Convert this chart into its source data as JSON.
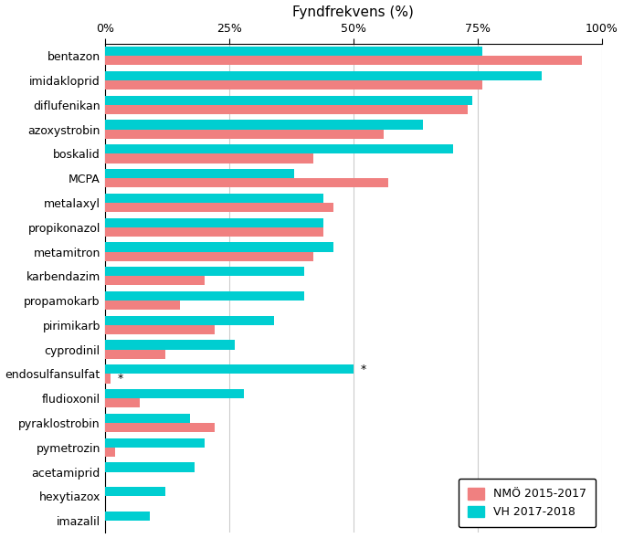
{
  "title": "Fyndfrekvens (%)",
  "categories": [
    "bentazon",
    "imidakloprid",
    "diflufenikan",
    "azoxystrobin",
    "boskalid",
    "MCPA",
    "metalaxyl",
    "propikonazol",
    "metamitron",
    "karbendazim",
    "propamokarb",
    "pirimikarb",
    "cyprodinil",
    "endosulfansulfat",
    "fludioxonil",
    "pyraklostrobin",
    "pymetrozin",
    "acetamiprid",
    "hexytiazox",
    "imazalil"
  ],
  "nmo_values": [
    96,
    76,
    73,
    56,
    42,
    57,
    46,
    44,
    42,
    20,
    15,
    22,
    12,
    1,
    7,
    22,
    2,
    0,
    0,
    0
  ],
  "vh_values": [
    76,
    88,
    74,
    64,
    70,
    38,
    44,
    44,
    46,
    40,
    40,
    34,
    26,
    50,
    28,
    17,
    20,
    18,
    12,
    9
  ],
  "nmo_color": "#F08080",
  "vh_color": "#00CED1",
  "nmo_label": "NMÖ 2015-2017",
  "vh_label": "VH 2017-2018",
  "xlim": [
    0,
    100
  ],
  "xticks": [
    0,
    25,
    50,
    75,
    100
  ],
  "xtick_labels": [
    "0%",
    "25%",
    "50%",
    "75%",
    "100%"
  ],
  "bg_color": "#ffffff",
  "grid_color": "#cccccc"
}
